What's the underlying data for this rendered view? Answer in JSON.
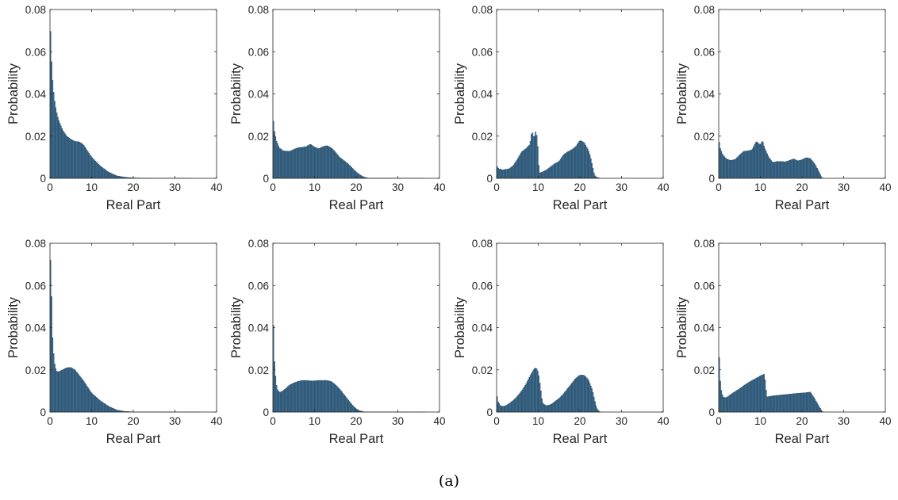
{
  "caption": "(a)",
  "colors": {
    "bar_fill": "#3f6f93",
    "bar_edge": "#1f3f55",
    "axis": "#262626"
  },
  "chart_data": [
    {
      "type": "bar",
      "xlabel": "Real Part",
      "ylabel": "Probability",
      "xlim": [
        0,
        40
      ],
      "ylim": [
        0,
        0.08
      ],
      "xticks": [
        "0",
        "10",
        "20",
        "30",
        "40"
      ],
      "yticks": [
        "0",
        "0.02",
        "0.04",
        "0.06",
        "0.08"
      ],
      "grid": false,
      "curve": [
        [
          0,
          0.078
        ],
        [
          0.3,
          0.058
        ],
        [
          0.6,
          0.047
        ],
        [
          1,
          0.038
        ],
        [
          1.5,
          0.032
        ],
        [
          2,
          0.028
        ],
        [
          3,
          0.023
        ],
        [
          4,
          0.02
        ],
        [
          5,
          0.0185
        ],
        [
          6,
          0.0175
        ],
        [
          7,
          0.0173
        ],
        [
          8,
          0.016
        ],
        [
          9,
          0.013
        ],
        [
          10,
          0.01
        ],
        [
          12,
          0.006
        ],
        [
          14,
          0.003
        ],
        [
          16,
          0.0012
        ],
        [
          18,
          0.0005
        ],
        [
          20,
          0.0002
        ],
        [
          25,
          5e-05
        ],
        [
          40,
          0
        ]
      ]
    },
    {
      "type": "bar",
      "xlabel": "Real Part",
      "ylabel": "Probability",
      "xlim": [
        0,
        40
      ],
      "ylim": [
        0,
        0.08
      ],
      "xticks": [
        "0",
        "10",
        "20",
        "30",
        "40"
      ],
      "yticks": [
        "0",
        "0.02",
        "0.04",
        "0.06",
        "0.08"
      ],
      "grid": false,
      "curve": [
        [
          0,
          0.03
        ],
        [
          0.3,
          0.023
        ],
        [
          0.8,
          0.018
        ],
        [
          1.5,
          0.0145
        ],
        [
          2.5,
          0.013
        ],
        [
          4,
          0.0128
        ],
        [
          6,
          0.0145
        ],
        [
          7,
          0.0147
        ],
        [
          8,
          0.015
        ],
        [
          9,
          0.0162
        ],
        [
          10,
          0.0148
        ],
        [
          11,
          0.014
        ],
        [
          12,
          0.015
        ],
        [
          13,
          0.0155
        ],
        [
          14,
          0.0145
        ],
        [
          15,
          0.0125
        ],
        [
          16,
          0.01
        ],
        [
          17,
          0.0085
        ],
        [
          18,
          0.007
        ],
        [
          19,
          0.005
        ],
        [
          20,
          0.003
        ],
        [
          21,
          0.0015
        ],
        [
          22,
          0.0005
        ],
        [
          23,
          0.0001
        ],
        [
          40,
          0
        ]
      ]
    },
    {
      "type": "bar",
      "xlabel": "Real Part",
      "ylabel": "Probability",
      "xlim": [
        0,
        40
      ],
      "ylim": [
        0,
        0.08
      ],
      "xticks": [
        "0",
        "10",
        "20",
        "30",
        "40"
      ],
      "yticks": [
        "0",
        "0.02",
        "0.04",
        "0.06",
        "0.08"
      ],
      "grid": false,
      "curve": [
        [
          0,
          0.006
        ],
        [
          0.5,
          0.0045
        ],
        [
          1.5,
          0.004
        ],
        [
          3,
          0.0045
        ],
        [
          4,
          0.006
        ],
        [
          5,
          0.009
        ],
        [
          6,
          0.0125
        ],
        [
          7,
          0.014
        ],
        [
          8,
          0.016
        ],
        [
          8.5,
          0.0225
        ],
        [
          9,
          0.019
        ],
        [
          9.5,
          0.023
        ],
        [
          10,
          0.0125
        ],
        [
          10.2,
          0.0025
        ],
        [
          11,
          0.003
        ],
        [
          12,
          0.004
        ],
        [
          13,
          0.0055
        ],
        [
          14,
          0.007
        ],
        [
          15,
          0.008
        ],
        [
          16,
          0.011
        ],
        [
          17,
          0.0125
        ],
        [
          18,
          0.0135
        ],
        [
          19,
          0.015
        ],
        [
          20,
          0.018
        ],
        [
          21,
          0.017
        ],
        [
          22,
          0.0135
        ],
        [
          22.5,
          0.0105
        ],
        [
          23,
          0.006
        ],
        [
          23.5,
          0.0015
        ],
        [
          24,
          0.0005
        ],
        [
          25,
          0
        ],
        [
          40,
          0
        ]
      ]
    },
    {
      "type": "bar",
      "xlabel": "Real Part",
      "ylabel": "Probability",
      "xlim": [
        0,
        40
      ],
      "ylim": [
        0,
        0.08
      ],
      "xticks": [
        "0",
        "10",
        "20",
        "30",
        "40"
      ],
      "yticks": [
        "0",
        "0.02",
        "0.04",
        "0.06",
        "0.08"
      ],
      "grid": false,
      "curve": [
        [
          0,
          0.019
        ],
        [
          0.3,
          0.0145
        ],
        [
          1,
          0.011
        ],
        [
          2,
          0.009
        ],
        [
          3,
          0.0085
        ],
        [
          4,
          0.009
        ],
        [
          5,
          0.011
        ],
        [
          6,
          0.0128
        ],
        [
          7,
          0.013
        ],
        [
          8,
          0.0135
        ],
        [
          9,
          0.0175
        ],
        [
          10,
          0.0158
        ],
        [
          10.5,
          0.018
        ],
        [
          11,
          0.0145
        ],
        [
          12,
          0.01
        ],
        [
          13,
          0.0075
        ],
        [
          14,
          0.008
        ],
        [
          15,
          0.008
        ],
        [
          16,
          0.0078
        ],
        [
          17,
          0.0085
        ],
        [
          18,
          0.0092
        ],
        [
          19,
          0.0083
        ],
        [
          20,
          0.0088
        ],
        [
          21,
          0.0098
        ],
        [
          22,
          0.0094
        ],
        [
          23,
          0.007
        ],
        [
          24,
          0.0035
        ],
        [
          24.7,
          0.0005
        ],
        [
          25,
          0
        ],
        [
          40,
          0
        ]
      ]
    },
    {
      "type": "bar",
      "xlabel": "Real Part",
      "ylabel": "Probability",
      "xlim": [
        0,
        40
      ],
      "ylim": [
        0,
        0.08
      ],
      "xticks": [
        "0",
        "10",
        "20",
        "30",
        "40"
      ],
      "yticks": [
        "0",
        "0.02",
        "0.04",
        "0.06",
        "0.08"
      ],
      "grid": false,
      "curve": [
        [
          0,
          0.08
        ],
        [
          0.3,
          0.061
        ],
        [
          0.6,
          0.036
        ],
        [
          1,
          0.024
        ],
        [
          1.5,
          0.0195
        ],
        [
          2,
          0.019
        ],
        [
          3,
          0.02
        ],
        [
          4,
          0.021
        ],
        [
          5,
          0.0212
        ],
        [
          6,
          0.02
        ],
        [
          7,
          0.0175
        ],
        [
          8,
          0.015
        ],
        [
          9,
          0.012
        ],
        [
          10,
          0.009
        ],
        [
          12,
          0.0055
        ],
        [
          14,
          0.0028
        ],
        [
          16,
          0.001
        ],
        [
          18,
          0.0003
        ],
        [
          20,
          0.0001
        ],
        [
          40,
          0
        ]
      ]
    },
    {
      "type": "bar",
      "xlabel": "Real Part",
      "ylabel": "Probability",
      "xlim": [
        0,
        40
      ],
      "ylim": [
        0,
        0.08
      ],
      "xticks": [
        "0",
        "10",
        "20",
        "30",
        "40"
      ],
      "yticks": [
        "0",
        "0.02",
        "0.04",
        "0.06",
        "0.08"
      ],
      "grid": false,
      "curve": [
        [
          0,
          0.052
        ],
        [
          0.3,
          0.026
        ],
        [
          0.7,
          0.015
        ],
        [
          1,
          0.011
        ],
        [
          1.5,
          0.0095
        ],
        [
          2,
          0.0095
        ],
        [
          3,
          0.011
        ],
        [
          4,
          0.0128
        ],
        [
          5,
          0.0138
        ],
        [
          6,
          0.0145
        ],
        [
          7,
          0.015
        ],
        [
          8,
          0.015
        ],
        [
          9,
          0.0148
        ],
        [
          10,
          0.0148
        ],
        [
          11,
          0.015
        ],
        [
          12,
          0.015
        ],
        [
          13,
          0.015
        ],
        [
          14,
          0.0145
        ],
        [
          15,
          0.013
        ],
        [
          16,
          0.011
        ],
        [
          17,
          0.0085
        ],
        [
          18,
          0.006
        ],
        [
          19,
          0.0035
        ],
        [
          20,
          0.0015
        ],
        [
          21,
          0.0005
        ],
        [
          22,
          0.0001
        ],
        [
          40,
          0
        ]
      ]
    },
    {
      "type": "bar",
      "xlabel": "Real Part",
      "ylabel": "Probability",
      "xlim": [
        0,
        40
      ],
      "ylim": [
        0,
        0.08
      ],
      "xticks": [
        "0",
        "10",
        "20",
        "30",
        "40"
      ],
      "yticks": [
        "0",
        "0.02",
        "0.04",
        "0.06",
        "0.08"
      ],
      "grid": false,
      "curve": [
        [
          0,
          0.009
        ],
        [
          0.3,
          0.005
        ],
        [
          1,
          0.0028
        ],
        [
          2,
          0.0028
        ],
        [
          3,
          0.004
        ],
        [
          4,
          0.0055
        ],
        [
          5,
          0.0075
        ],
        [
          6,
          0.01
        ],
        [
          7,
          0.013
        ],
        [
          8,
          0.017
        ],
        [
          9,
          0.0205
        ],
        [
          9.5,
          0.021
        ],
        [
          10,
          0.019
        ],
        [
          10.5,
          0.012
        ],
        [
          11,
          0.0045
        ],
        [
          11.5,
          0.0035
        ],
        [
          12,
          0.003
        ],
        [
          13,
          0.0035
        ],
        [
          14,
          0.005
        ],
        [
          15,
          0.0065
        ],
        [
          16,
          0.0085
        ],
        [
          17,
          0.011
        ],
        [
          18,
          0.0135
        ],
        [
          19,
          0.016
        ],
        [
          20,
          0.0175
        ],
        [
          21,
          0.0175
        ],
        [
          22,
          0.0155
        ],
        [
          23,
          0.0105
        ],
        [
          23.5,
          0.006
        ],
        [
          24,
          0.002
        ],
        [
          24.5,
          0.0005
        ],
        [
          25,
          0
        ],
        [
          40,
          0
        ]
      ]
    },
    {
      "type": "bar",
      "xlabel": "Real Part",
      "ylabel": "Probability",
      "xlim": [
        0,
        40
      ],
      "ylim": [
        0,
        0.08
      ],
      "xticks": [
        "0",
        "10",
        "20",
        "30",
        "40"
      ],
      "yticks": [
        "0",
        "0.02",
        "0.04",
        "0.06",
        "0.08"
      ],
      "grid": false,
      "curve": [
        [
          0,
          0.033
        ],
        [
          0.3,
          0.016
        ],
        [
          0.7,
          0.009
        ],
        [
          1.2,
          0.0068
        ],
        [
          2,
          0.007
        ],
        [
          3,
          0.0085
        ],
        [
          4,
          0.0098
        ],
        [
          5,
          0.011
        ],
        [
          6,
          0.0125
        ],
        [
          7,
          0.0138
        ],
        [
          8,
          0.015
        ],
        [
          9,
          0.016
        ],
        [
          10,
          0.0172
        ],
        [
          11,
          0.018
        ],
        [
          11.3,
          0.0115
        ],
        [
          11.6,
          0.0072
        ],
        [
          13,
          0.0077
        ],
        [
          15,
          0.0081
        ],
        [
          17,
          0.0085
        ],
        [
          19,
          0.0089
        ],
        [
          21,
          0.0092
        ],
        [
          22,
          0.0095
        ],
        [
          23,
          0.0065
        ],
        [
          24,
          0.003
        ],
        [
          24.8,
          0.0005
        ],
        [
          25,
          0
        ],
        [
          40,
          0
        ]
      ]
    }
  ]
}
